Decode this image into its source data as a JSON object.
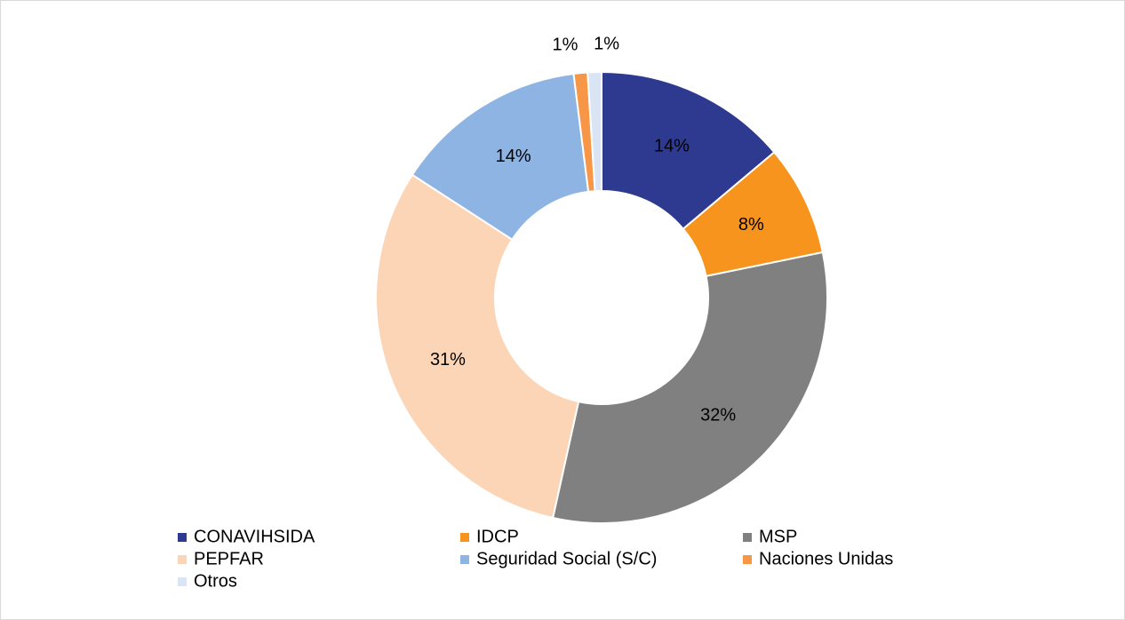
{
  "chart_data": {
    "type": "donut",
    "categories": [
      "CONAVIHSIDA",
      "IDCP",
      "MSP",
      "PEPFAR",
      "Seguridad Social (S/C)",
      "Naciones Unidas",
      "Otros"
    ],
    "values": [
      14,
      8,
      32,
      31,
      14,
      1,
      1
    ],
    "value_labels": [
      "14%",
      "8%",
      "32%",
      "31%",
      "14%",
      "1%",
      "1%"
    ],
    "colors": [
      "#2e3a8f",
      "#f7941d",
      "#808080",
      "#fbd5b5",
      "#8eb4e3",
      "#f79646",
      "#d9e5f5"
    ],
    "legend": "bottom"
  }
}
